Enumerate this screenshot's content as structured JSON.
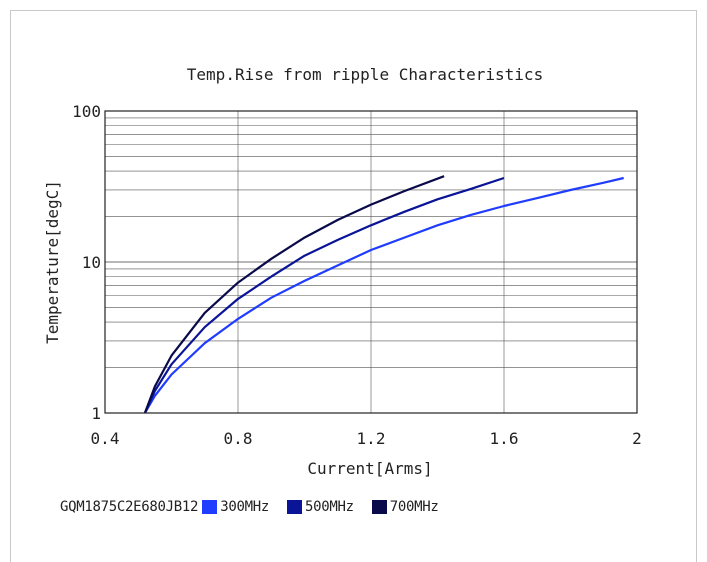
{
  "chart_data": {
    "type": "line",
    "title": "Temp.Rise from ripple Characteristics",
    "xlabel": "Current[Arms]",
    "ylabel": "Temperature[degC]",
    "xlim": [
      0.4,
      2.0
    ],
    "ylim": [
      1,
      100
    ],
    "yscale": "log",
    "grid": true,
    "x_ticks": [
      "0.4",
      "0.8",
      "1.2",
      "1.6",
      "2"
    ],
    "x_tick_values": [
      0.4,
      0.8,
      1.2,
      1.6,
      2.0
    ],
    "y_ticks": [
      "1",
      "10",
      "100"
    ],
    "y_tick_values": [
      1,
      10,
      100
    ],
    "legend_position": "bottom",
    "legend_prefix": "GQM1875C2E680JB12",
    "series": [
      {
        "name": "300MHz",
        "color": "#1f3cff",
        "x": [
          0.52,
          0.55,
          0.6,
          0.7,
          0.8,
          0.9,
          1.0,
          1.1,
          1.2,
          1.3,
          1.4,
          1.5,
          1.6,
          1.7,
          1.8,
          1.9,
          1.96
        ],
        "y": [
          1.0,
          1.3,
          1.8,
          2.9,
          4.2,
          5.8,
          7.5,
          9.5,
          12,
          14.5,
          17.5,
          20.5,
          23.5,
          26.5,
          30,
          33.5,
          36
        ]
      },
      {
        "name": "500MHz",
        "color": "#0a1496",
        "x": [
          0.52,
          0.55,
          0.6,
          0.7,
          0.8,
          0.9,
          1.0,
          1.1,
          1.2,
          1.3,
          1.4,
          1.5,
          1.6
        ],
        "y": [
          1.0,
          1.4,
          2.1,
          3.7,
          5.7,
          8.0,
          11,
          14,
          17.5,
          21.5,
          26,
          30.5,
          36
        ]
      },
      {
        "name": "700MHz",
        "color": "#0a0a4b",
        "x": [
          0.52,
          0.55,
          0.6,
          0.7,
          0.8,
          0.9,
          1.0,
          1.1,
          1.2,
          1.3,
          1.42
        ],
        "y": [
          1.0,
          1.5,
          2.4,
          4.6,
          7.3,
          10.5,
          14.5,
          19,
          24,
          29.5,
          37
        ]
      }
    ]
  }
}
